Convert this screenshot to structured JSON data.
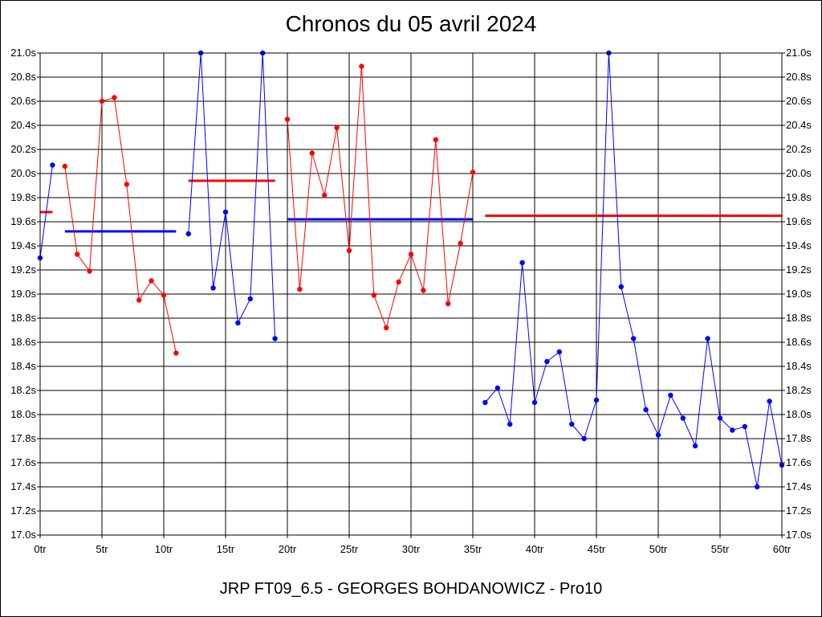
{
  "chart_data": {
    "type": "line",
    "title": "Chronos du 05 avril 2024",
    "footer": "JRP FT09_6.5 - GEORGES BOHDANOWICZ - Pro10",
    "ylim": [
      17.0,
      21.0
    ],
    "xlim": [
      0,
      60
    ],
    "grid": true,
    "y_ticks": [
      "17.0s",
      "17.2s",
      "17.4s",
      "17.6s",
      "17.8s",
      "18.0s",
      "18.2s",
      "18.4s",
      "18.6s",
      "18.8s",
      "19.0s",
      "19.2s",
      "19.4s",
      "19.6s",
      "19.8s",
      "20.0s",
      "20.2s",
      "20.4s",
      "20.6s",
      "20.8s",
      "21.0s"
    ],
    "x_ticks": [
      "0tr",
      "5tr",
      "10tr",
      "15tr",
      "20tr",
      "25tr",
      "30tr",
      "35tr",
      "40tr",
      "45tr",
      "50tr",
      "55tr",
      "60tr"
    ],
    "series": [
      {
        "color": "#0000ff",
        "x": [
          0,
          1
        ],
        "y": [
          19.3,
          20.07
        ]
      },
      {
        "color": "#ff0000",
        "x": [
          2,
          3,
          4,
          5,
          6,
          7,
          8,
          9,
          10,
          11
        ],
        "y": [
          20.06,
          19.33,
          19.19,
          20.6,
          20.63,
          19.91,
          18.95,
          19.11,
          18.99,
          18.51
        ]
      },
      {
        "color": "#0000ff",
        "x": [
          12,
          13,
          14,
          15,
          16,
          17,
          18,
          19
        ],
        "y": [
          19.5,
          21.0,
          19.05,
          19.68,
          18.76,
          18.96,
          21.0,
          18.63
        ]
      },
      {
        "color": "#ff0000",
        "x": [
          20,
          21,
          22,
          23,
          24,
          25,
          26,
          27,
          28,
          29,
          30,
          31,
          32,
          33,
          34,
          35
        ],
        "y": [
          20.45,
          19.04,
          20.17,
          19.82,
          20.38,
          19.36,
          20.89,
          18.99,
          18.72,
          19.1,
          19.33,
          19.03,
          20.28,
          18.92,
          19.42,
          20.01
        ]
      },
      {
        "color": "#0000ff",
        "x": [
          36,
          37,
          38,
          39,
          40,
          41,
          42,
          43,
          44,
          45,
          46,
          47,
          48,
          49,
          50,
          51,
          52,
          53,
          54,
          55,
          56,
          57,
          58,
          59,
          60
        ],
        "y": [
          18.1,
          18.22,
          17.92,
          19.26,
          18.1,
          18.44,
          18.52,
          17.92,
          17.8,
          18.12,
          21.0,
          19.06,
          18.63,
          18.04,
          17.83,
          18.16,
          17.97,
          17.74,
          18.63,
          17.97,
          17.87,
          17.9,
          17.4,
          18.11,
          17.58
        ]
      }
    ],
    "averages": [
      {
        "color": "#ff0000",
        "x_start": 0,
        "x_end": 1,
        "value": 19.68
      },
      {
        "color": "#0000ff",
        "x_start": 2,
        "x_end": 11,
        "value": 19.52
      },
      {
        "color": "#ff0000",
        "x_start": 12,
        "x_end": 19,
        "value": 19.94
      },
      {
        "color": "#0000ff",
        "x_start": 20,
        "x_end": 35,
        "value": 19.62
      },
      {
        "color": "#ff0000",
        "x_start": 36,
        "x_end": 60,
        "value": 19.65
      }
    ]
  }
}
